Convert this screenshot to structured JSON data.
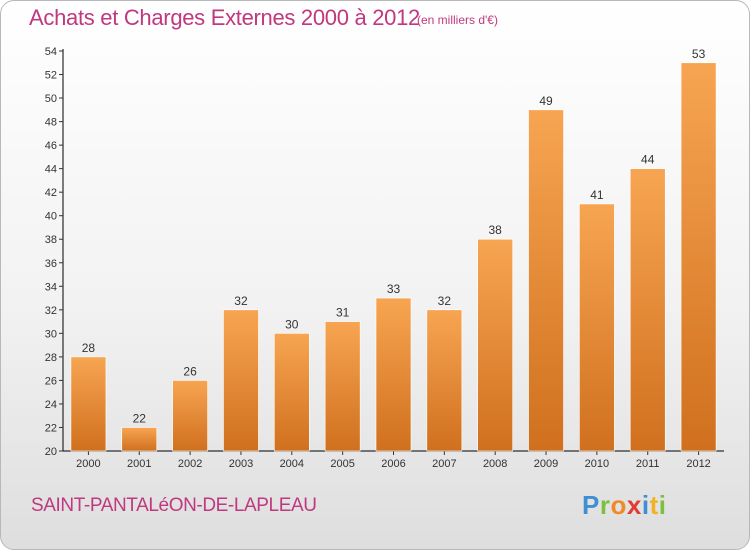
{
  "header": {
    "title": "Achats et Charges Externes 2000 à 2012",
    "subtitle": "(en milliers d'€)"
  },
  "footer": {
    "commune": "SAINT-PANTALéON-DE-LAPLEAU",
    "logo_letters": [
      "P",
      "r",
      "o",
      "x",
      "i",
      "t",
      "i"
    ],
    "logo_colors": [
      "#3f8fd2",
      "#7fbf3f",
      "#f08a24",
      "#e03c31",
      "#3f8fd2",
      "#f0b323",
      "#7fbf3f"
    ]
  },
  "colors": {
    "title": "#c0387f",
    "bar_light": "#f7a552",
    "bar_dark": "#d0701e",
    "axis": "#000000",
    "grid_tick": "#333333"
  },
  "chart_data": {
    "type": "bar",
    "categories": [
      "2000",
      "2001",
      "2002",
      "2003",
      "2004",
      "2005",
      "2006",
      "2007",
      "2008",
      "2009",
      "2010",
      "2011",
      "2012"
    ],
    "values": [
      28,
      22,
      26,
      32,
      30,
      31,
      33,
      32,
      38,
      49,
      41,
      44,
      53
    ],
    "ylim": [
      20,
      54
    ],
    "yticks": [
      20,
      22,
      24,
      26,
      28,
      30,
      32,
      34,
      36,
      38,
      40,
      42,
      44,
      46,
      48,
      50,
      52,
      54
    ],
    "title": "Achats et Charges Externes 2000 à 2012",
    "subtitle": "(en milliers d'€)",
    "xlabel": "",
    "ylabel": "",
    "grid": false,
    "data_labels": true
  }
}
